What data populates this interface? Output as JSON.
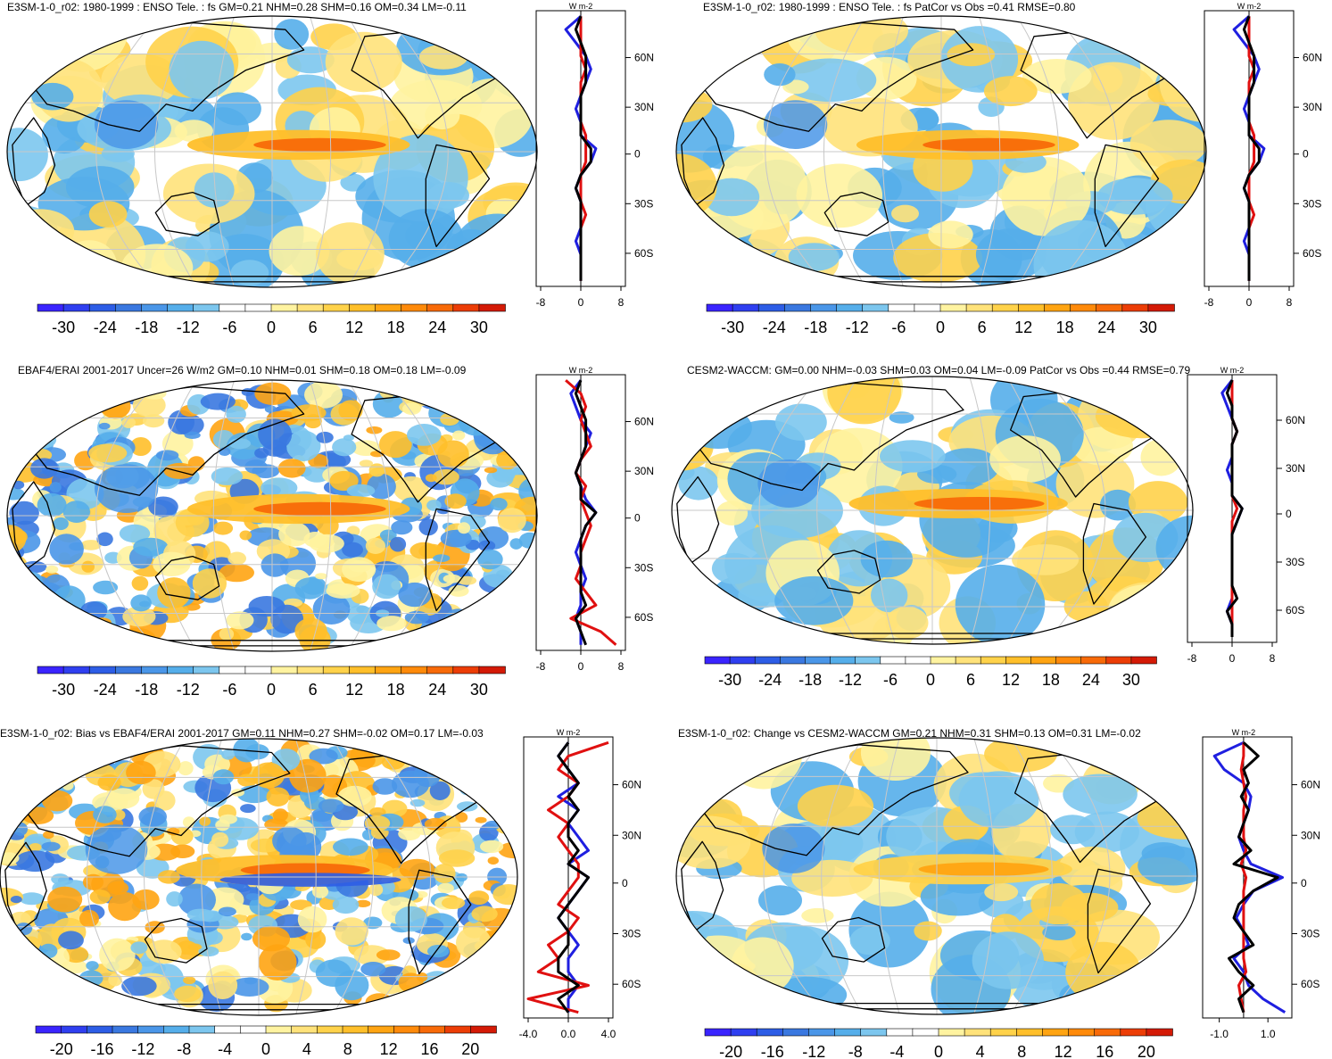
{
  "chart_data": [
    {
      "type": "heatmap",
      "title": "E3SM-1-0_r02: 1980-1999 : ENSO Tele. : fs GM=0.21 NHM=0.28 SHM=0.16 OM=0.34 LM=-0.11",
      "colorbar": {
        "ticks": [
          "-30",
          "-24",
          "-18",
          "-12",
          "-6",
          "0",
          "6",
          "12",
          "18",
          "24",
          "30"
        ]
      },
      "profile": {
        "unit": "W m-2",
        "yticks": [
          "60N",
          "30N",
          "0",
          "30S",
          "60S"
        ],
        "xticks": [
          "-8",
          "0",
          "8"
        ],
        "xlim": [
          -8,
          8
        ],
        "series": [
          {
            "name": "blue",
            "color": "#1f1fe0",
            "values": [
              0,
              -3,
              -1,
              1,
              2,
              1,
              0,
              -1,
              0,
              0,
              3,
              2,
              0,
              -1,
              0,
              0,
              0,
              -1,
              0,
              0,
              0
            ]
          },
          {
            "name": "red",
            "color": "#e01010",
            "values": [
              0,
              0,
              0,
              0,
              1,
              0,
              0,
              0,
              0,
              1,
              1,
              1,
              0,
              0,
              0,
              1,
              0,
              0,
              0,
              0,
              0
            ]
          },
          {
            "name": "black",
            "color": "#000000",
            "values": [
              0,
              -1,
              0,
              1,
              1,
              1,
              0,
              0,
              0,
              0,
              2,
              2,
              0,
              -1,
              0,
              0,
              0,
              0,
              0,
              0,
              0
            ]
          }
        ]
      }
    },
    {
      "type": "heatmap",
      "title": "E3SM-1-0_r02: 1980-1999 : ENSO Tele. : fs PatCor vs Obs =0.41 RMSE=0.80",
      "colorbar": {
        "ticks": [
          "-30",
          "-24",
          "-18",
          "-12",
          "-6",
          "0",
          "6",
          "12",
          "18",
          "24",
          "30"
        ]
      },
      "profile": {
        "unit": "W m-2",
        "yticks": [
          "60N",
          "30N",
          "0",
          "30S",
          "60S"
        ],
        "xticks": [
          "-8",
          "0",
          "8"
        ],
        "xlim": [
          -8,
          8
        ],
        "series": [
          {
            "name": "blue",
            "color": "#1f1fe0",
            "values": [
              0,
              -3,
              -1,
              1,
              2,
              1,
              0,
              -1,
              0,
              0,
              3,
              2,
              0,
              -1,
              0,
              0,
              0,
              -1,
              0,
              0,
              0
            ]
          },
          {
            "name": "red",
            "color": "#e01010",
            "values": [
              0,
              0,
              0,
              0,
              1,
              0,
              0,
              0,
              0,
              1,
              1,
              1,
              0,
              0,
              0,
              1,
              0,
              0,
              0,
              0,
              0
            ]
          },
          {
            "name": "black",
            "color": "#000000",
            "values": [
              0,
              -1,
              0,
              1,
              1,
              1,
              0,
              0,
              0,
              0,
              2,
              2,
              0,
              -1,
              0,
              0,
              0,
              0,
              0,
              0,
              0
            ]
          }
        ]
      }
    },
    {
      "type": "heatmap",
      "title": "EBAF4/ERAI 2001-2017 Uncer=26 W/m2 GM=0.10 NHM=0.01 SHM=0.18 OM=0.18 LM=-0.09",
      "colorbar": {
        "ticks": [
          "-30",
          "-24",
          "-18",
          "-12",
          "-6",
          "0",
          "6",
          "12",
          "18",
          "24",
          "30"
        ]
      },
      "profile": {
        "unit": "W m-2",
        "yticks": [
          "60N",
          "30N",
          "0",
          "30S",
          "60S"
        ],
        "xticks": [
          "-8",
          "0",
          "8"
        ],
        "xlim": [
          -8,
          8
        ],
        "series": [
          {
            "name": "blue",
            "color": "#1f1fe0",
            "values": [
              0,
              -2,
              -1,
              0,
              2,
              1,
              0,
              -1,
              0,
              1,
              3,
              1,
              0,
              -1,
              0,
              1,
              0,
              0,
              -1,
              0,
              0
            ]
          },
          {
            "name": "red",
            "color": "#e01010",
            "values": [
              -3,
              0,
              1,
              0,
              1,
              2,
              0,
              -1,
              1,
              0,
              1,
              2,
              1,
              0,
              0,
              -1,
              1,
              3,
              -2,
              4,
              7
            ]
          },
          {
            "name": "black",
            "color": "#000000",
            "values": [
              0,
              -1,
              0,
              1,
              1,
              1,
              0,
              -1,
              0,
              0,
              3,
              1,
              0,
              0,
              0,
              0,
              0,
              1,
              -1,
              0,
              1
            ]
          }
        ]
      }
    },
    {
      "type": "heatmap",
      "title": "CESM2-WACCM: GM=0.00 NHM=-0.03 SHM=0.03 OM=0.04 LM=-0.09 PatCor vs Obs =0.44 RMSE=0.79",
      "colorbar": {
        "ticks": [
          "-30",
          "-24",
          "-18",
          "-12",
          "-6",
          "0",
          "6",
          "12",
          "18",
          "24",
          "30"
        ]
      },
      "profile": {
        "unit": "W m-2",
        "yticks": [
          "60N",
          "30N",
          "0",
          "30S",
          "60S"
        ],
        "xticks": [
          "-8",
          "0",
          "8"
        ],
        "xlim": [
          -8,
          8
        ],
        "series": [
          {
            "name": "blue",
            "color": "#1f1fe0",
            "values": [
              0,
              -2,
              -1,
              0,
              1,
              0,
              0,
              -1,
              0,
              0,
              2,
              1,
              0,
              0,
              0,
              0,
              0,
              0,
              -1,
              0,
              0
            ]
          },
          {
            "name": "red",
            "color": "#e01010",
            "values": [
              0,
              0,
              0,
              0,
              1,
              0,
              0,
              0,
              0,
              0,
              1,
              0,
              0,
              0,
              0,
              0,
              0,
              0,
              0,
              0,
              0
            ]
          },
          {
            "name": "black",
            "color": "#000000",
            "values": [
              0,
              -1,
              0,
              0,
              1,
              0,
              0,
              0,
              0,
              0,
              2,
              1,
              0,
              0,
              0,
              0,
              0,
              1,
              -1,
              0,
              0
            ]
          }
        ]
      }
    },
    {
      "type": "heatmap",
      "title": "E3SM-1-0_r02: Bias vs EBAF4/ERAI 2001-2017 GM=0.11 NHM=0.27 SHM=-0.02 OM=0.17 LM=-0.03",
      "colorbar": {
        "ticks": [
          "-20",
          "-16",
          "-12",
          "-8",
          "-4",
          "0",
          "4",
          "8",
          "12",
          "16",
          "20"
        ]
      },
      "profile": {
        "unit": "W m-2",
        "yticks": [
          "60N",
          "30N",
          "0",
          "30S",
          "60S"
        ],
        "xticks": [
          "-4.0",
          "0.0",
          "4.0"
        ],
        "xlim": [
          -4,
          4
        ],
        "series": [
          {
            "name": "blue",
            "color": "#1f1fe0",
            "values": [
              0,
              -1,
              0,
              1,
              -1,
              1,
              0,
              1,
              2,
              0,
              2,
              1,
              0,
              -1,
              0,
              1,
              0,
              0,
              1,
              0,
              0
            ]
          },
          {
            "name": "red",
            "color": "#e01010",
            "values": [
              4,
              0,
              -1,
              1,
              0,
              -2,
              0,
              -1,
              0,
              1,
              1,
              0,
              -1,
              1,
              0,
              -2,
              -1,
              -3,
              2,
              -4,
              1
            ]
          },
          {
            "name": "black",
            "color": "#000000",
            "values": [
              0,
              -1,
              0,
              1,
              0,
              1,
              0,
              0,
              1,
              0,
              2,
              1,
              0,
              -1,
              0,
              0,
              -1,
              -1,
              1,
              -1,
              0
            ]
          }
        ]
      }
    },
    {
      "type": "heatmap",
      "title": "E3SM-1-0_r02: Change vs CESM2-WACCM GM=0.21 NHM=0.31 SHM=0.13 OM=0.31 LM=-0.02",
      "colorbar": {
        "ticks": [
          "-20",
          "-16",
          "-12",
          "-8",
          "-4",
          "0",
          "4",
          "8",
          "12",
          "16",
          "20"
        ]
      },
      "profile": {
        "unit": "W m-2",
        "yticks": [
          "60N",
          "30N",
          "0",
          "30S",
          "60S"
        ],
        "xticks": [
          "-1.0",
          "1.0"
        ],
        "xlim": [
          -1.5,
          1.8
        ],
        "series": [
          {
            "name": "blue",
            "color": "#1f1fe0",
            "values": [
              0,
              -1.2,
              -0.8,
              0,
              0.3,
              0.2,
              0,
              -0.2,
              0,
              0.3,
              1.6,
              0.4,
              0,
              -0.3,
              0,
              0.2,
              -0.4,
              0,
              0.2,
              0.8,
              1.7
            ]
          },
          {
            "name": "red",
            "color": "#e01010",
            "values": [
              0,
              0,
              -0.1,
              0,
              0.1,
              0,
              0,
              0,
              0.1,
              -0.1,
              0.1,
              0,
              0,
              0,
              0,
              0,
              0,
              0.1,
              -0.2,
              -0.1,
              0
            ]
          },
          {
            "name": "black",
            "color": "#000000",
            "values": [
              0,
              0.6,
              0,
              0.2,
              -0.1,
              0.2,
              0,
              -0.2,
              0.3,
              -0.4,
              1.4,
              0.4,
              -0.2,
              -0.4,
              0,
              0.4,
              -0.6,
              -0.2,
              0.4,
              -0.2,
              0
            ]
          }
        ]
      }
    }
  ],
  "palette": {
    "diverging": [
      "#3a24ff",
      "#2f3ff0",
      "#2d5de6",
      "#3a78e0",
      "#4a96e8",
      "#55aeea",
      "#7cc6ee",
      "#ffffff",
      "#ffffff",
      "#fff3a0",
      "#ffe27a",
      "#ffd24a",
      "#ffbf2a",
      "#ffa412",
      "#ff8a0a",
      "#f86a08",
      "#ec3d06",
      "#d41a06"
    ]
  }
}
